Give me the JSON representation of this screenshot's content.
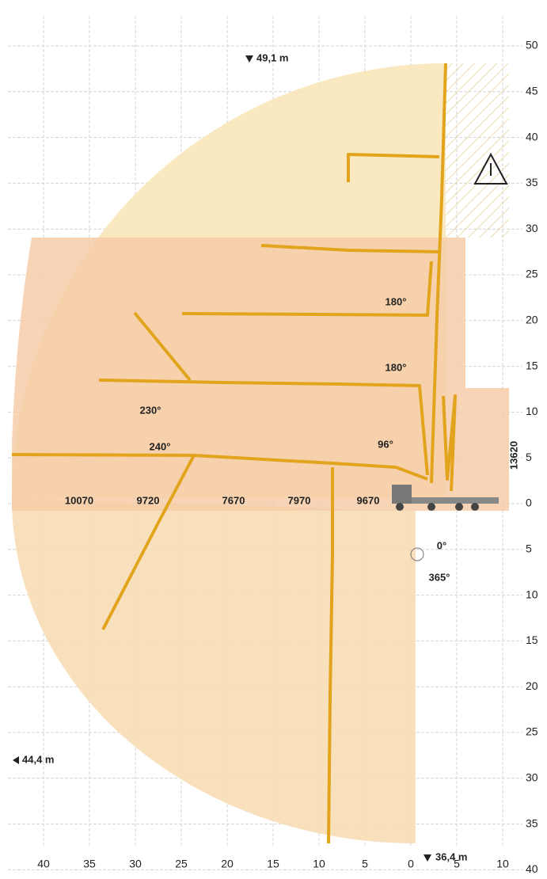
{
  "reach": {
    "height": "49,1 m",
    "horizontal": "44,4 m",
    "depth": "36,4 m"
  },
  "y_axis_labels": [
    50,
    45,
    40,
    35,
    30,
    25,
    20,
    15,
    10,
    5,
    0,
    5,
    10,
    15,
    20,
    25,
    30,
    35,
    40
  ],
  "x_axis_labels": [
    40,
    35,
    30,
    25,
    20,
    15,
    10,
    5,
    0,
    5,
    10
  ],
  "angles": [
    "180°",
    "180°",
    "230°",
    "240°",
    "96°",
    "0°",
    "365°"
  ],
  "section_lengths": [
    "10070",
    "9720",
    "7670",
    "7970",
    "9670"
  ],
  "support_width": "13620"
}
